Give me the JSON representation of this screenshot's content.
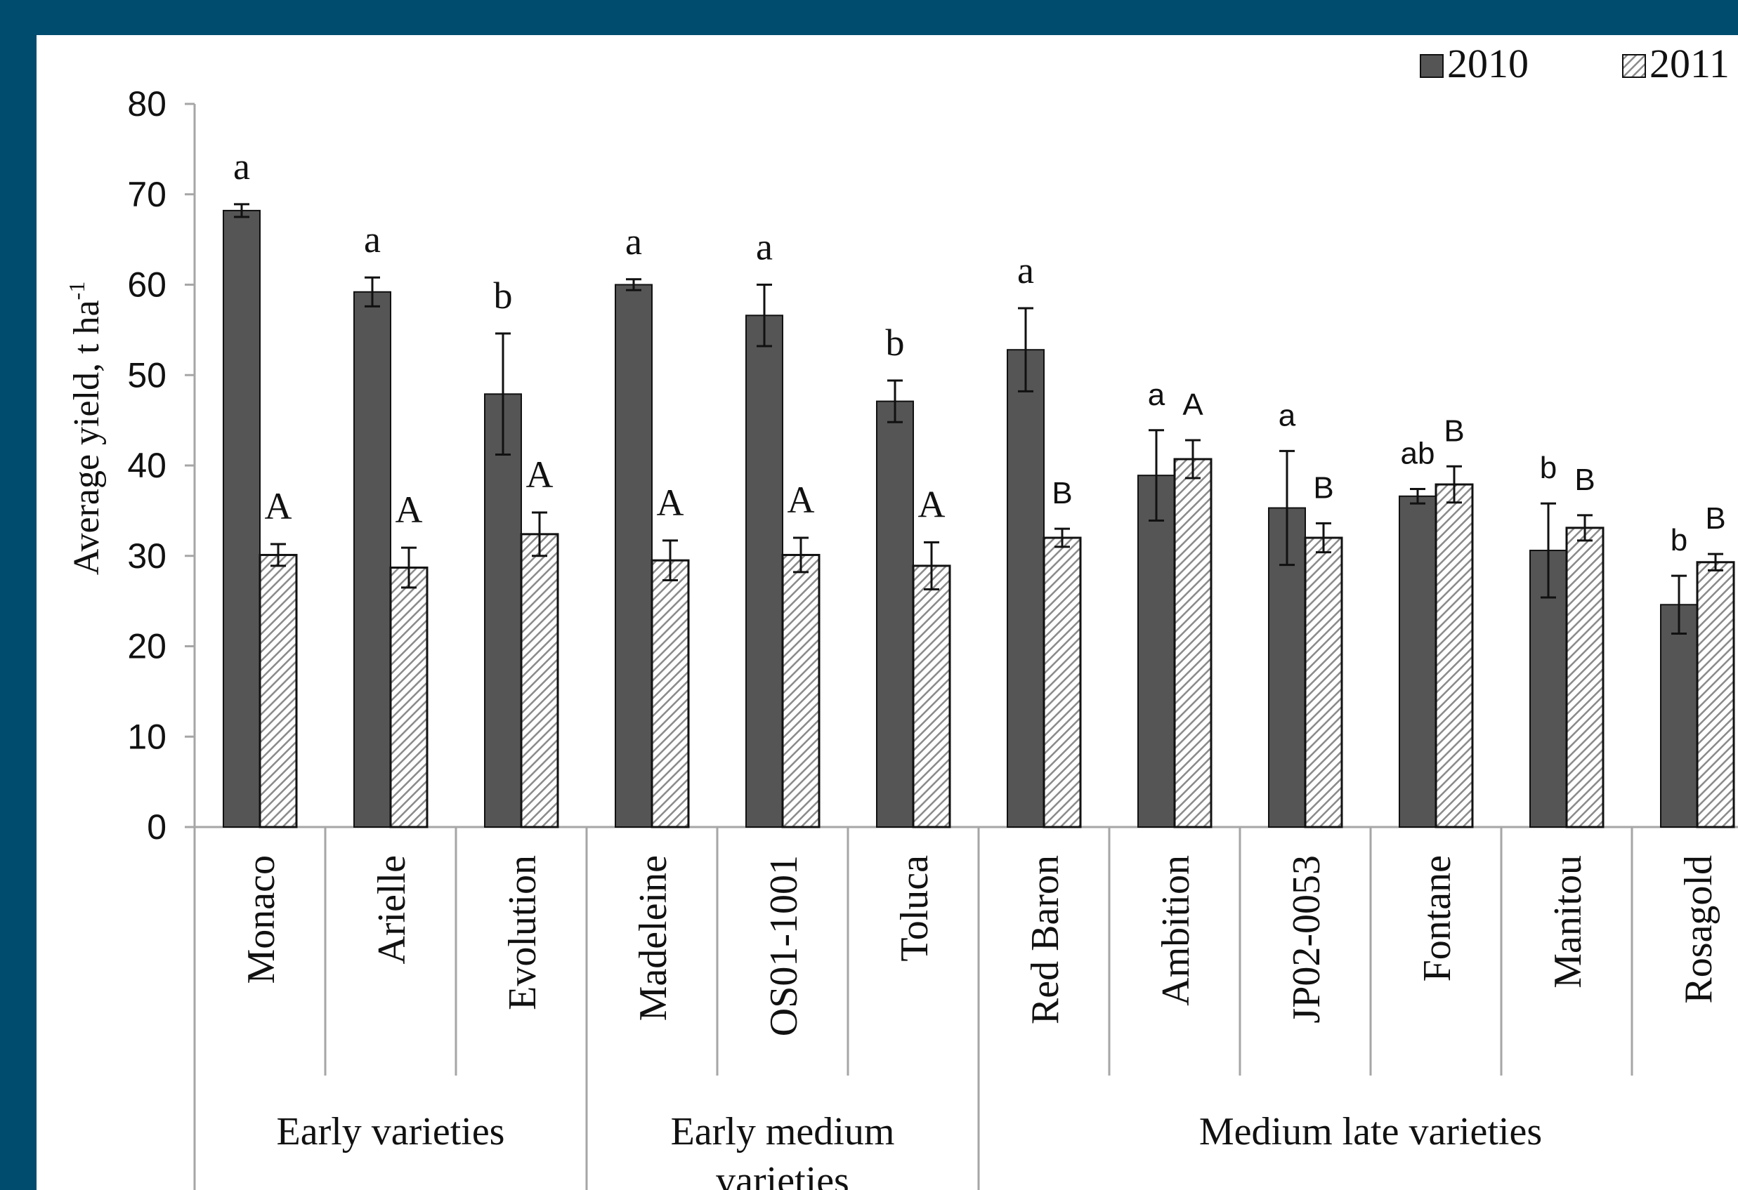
{
  "colors": {
    "background": "#004c6e",
    "plot_bg": "#ffffff",
    "bar_2010": "#555555",
    "bar_2011_hatch": "#8a8a8a",
    "axis": "#a6a6a6",
    "text": "#111111"
  },
  "chart_data": {
    "type": "bar",
    "ylabel": "Average yield, t ha",
    "ylabel_sup": "-1",
    "ylim": [
      0,
      80
    ],
    "yticks": [
      0,
      10,
      20,
      30,
      40,
      50,
      60,
      70,
      80
    ],
    "grid": false,
    "legend_position": "top-right",
    "categories": [
      "Monaco",
      "Arielle",
      "Evolution",
      "Madeleine",
      "OS01-1001",
      "Toluca",
      "Red Baron",
      "Ambition",
      "JP02-0053",
      "Fontane",
      "Manitou",
      "Rosagold"
    ],
    "groups": [
      {
        "label": "Early varieties",
        "start": 0,
        "end": 2
      },
      {
        "label": "Early medium varieties",
        "start": 3,
        "end": 5
      },
      {
        "label": "Medium late varieties",
        "start": 6,
        "end": 11
      }
    ],
    "series": [
      {
        "name": "2010",
        "values": [
          68.2,
          59.2,
          47.9,
          60.0,
          56.6,
          47.1,
          52.8,
          38.9,
          35.3,
          36.6,
          30.6,
          24.6
        ],
        "errors": [
          0.7,
          1.6,
          6.7,
          0.6,
          3.4,
          2.3,
          4.6,
          5.0,
          6.3,
          0.8,
          5.2,
          3.2
        ],
        "letters": [
          "a",
          "a",
          "b",
          "a",
          "a",
          "b",
          "a",
          "a",
          "a",
          "ab",
          "b",
          "b"
        ]
      },
      {
        "name": "2011",
        "values": [
          30.1,
          28.7,
          32.4,
          29.5,
          30.1,
          28.9,
          32.0,
          40.7,
          32.0,
          37.9,
          33.1,
          29.3
        ],
        "errors": [
          1.2,
          2.2,
          2.4,
          2.2,
          1.9,
          2.6,
          1.0,
          2.1,
          1.6,
          2.0,
          1.4,
          0.9
        ],
        "letters": [
          "A",
          "A",
          "A",
          "A",
          "A",
          "A",
          "B",
          "A",
          "B",
          "B",
          "B",
          "B"
        ]
      }
    ]
  }
}
